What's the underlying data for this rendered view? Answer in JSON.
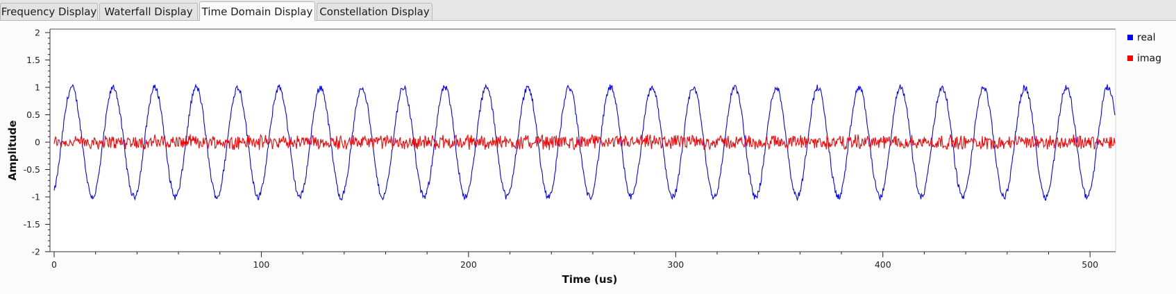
{
  "tabs": [
    {
      "label": "Frequency Display",
      "active": false
    },
    {
      "label": "Waterfall Display",
      "active": false
    },
    {
      "label": "Time Domain Display",
      "active": true
    },
    {
      "label": "Constellation Display",
      "active": false
    }
  ],
  "chart_data": {
    "type": "line",
    "xlabel": "Time (us)",
    "ylabel": "Amplitude",
    "xlim": [
      0,
      512
    ],
    "ylim": [
      -2,
      2
    ],
    "x_ticks": [
      0,
      100,
      200,
      300,
      400,
      500
    ],
    "y_ticks": [
      2,
      1.5,
      1,
      0.5,
      0,
      -0.5,
      -1,
      -1.5,
      -2
    ],
    "grid": false,
    "legend_position": "right",
    "series": [
      {
        "name": "real",
        "color": "#0000ff",
        "description_values": {
          "amplitude": 1.0,
          "period_us": 20,
          "start_value": -1.1,
          "noise": 0.06
        }
      },
      {
        "name": "imag",
        "color": "#ff0000",
        "description_values": {
          "amplitude": 0.0,
          "noise": 0.06
        }
      }
    ]
  }
}
